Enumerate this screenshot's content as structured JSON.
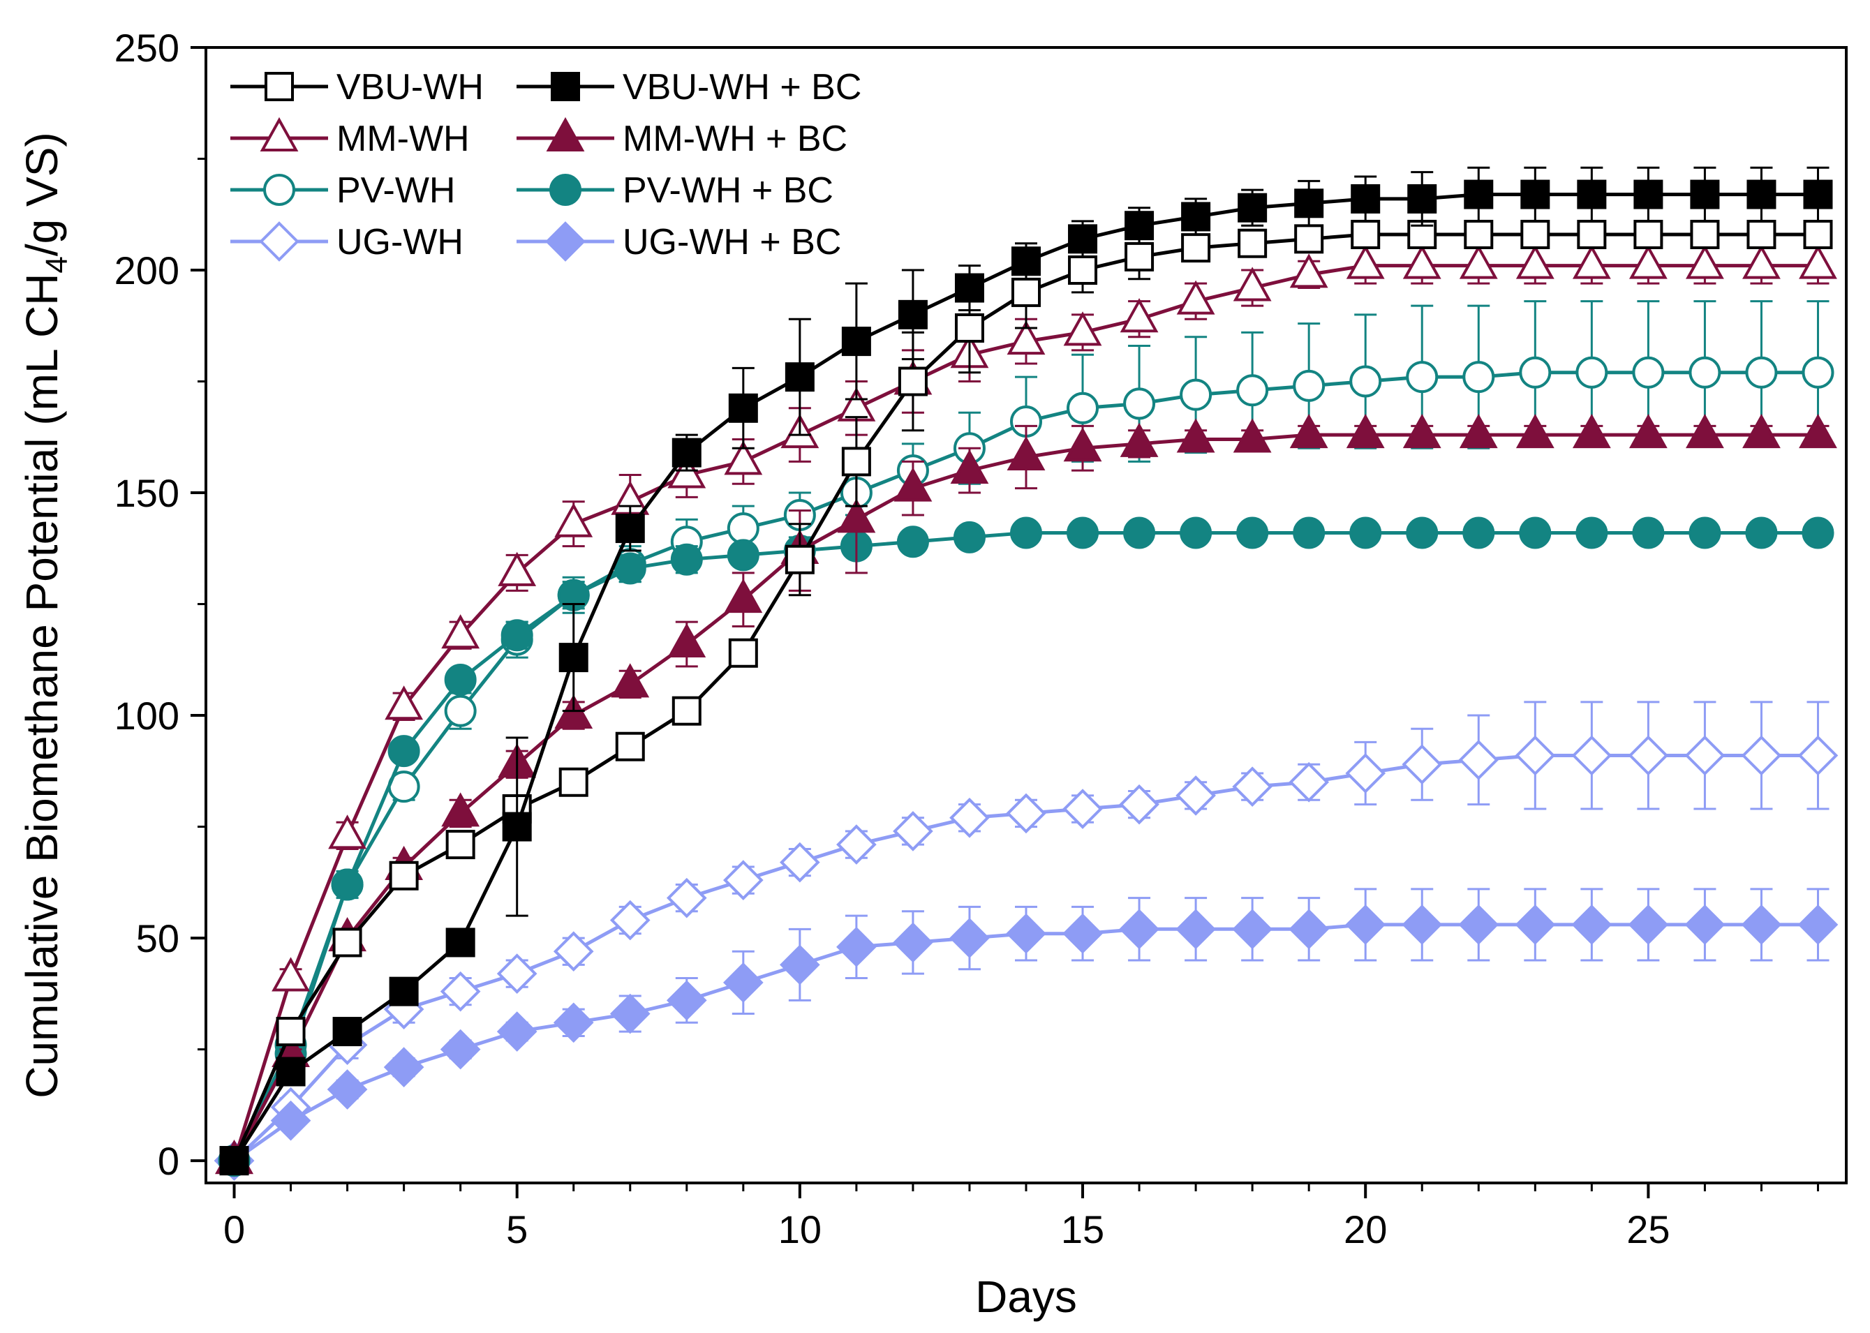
{
  "chart_data": {
    "type": "line",
    "title": "",
    "xlabel": "Days",
    "ylabel": {
      "pre": "Cumulative Biomethane Potential (mL CH",
      "sub": "4",
      "post": "/g VS)"
    },
    "xlim": [
      -0.5,
      28.5
    ],
    "ylim": [
      -5,
      250
    ],
    "xticks": [
      0,
      5,
      10,
      15,
      20,
      25
    ],
    "yticks": [
      0,
      50,
      100,
      150,
      200,
      250
    ],
    "grid": false,
    "legend_position": "top-left",
    "x": [
      0,
      1,
      2,
      3,
      4,
      5,
      6,
      7,
      8,
      9,
      10,
      11,
      12,
      13,
      14,
      15,
      16,
      17,
      18,
      19,
      20,
      21,
      22,
      23,
      24,
      25,
      26,
      27,
      28
    ],
    "series": [
      {
        "name": "UG-WH",
        "color": "#8e9cf5",
        "marker": "diamond",
        "filled": false,
        "values": [
          0,
          12,
          26,
          34,
          38,
          42,
          47,
          54,
          59,
          63,
          67,
          71,
          74,
          77,
          78,
          79,
          80,
          82,
          84,
          85,
          87,
          89,
          90,
          91,
          91,
          91,
          91,
          91,
          91
        ],
        "errors": [
          0,
          2,
          3,
          3,
          3,
          3,
          3,
          3,
          3,
          3,
          3,
          3,
          3,
          3,
          3,
          3,
          3,
          3,
          3,
          4,
          7,
          8,
          10,
          12,
          12,
          12,
          12,
          12,
          12
        ]
      },
      {
        "name": "UG-WH + BC",
        "color": "#8e9cf5",
        "marker": "diamond",
        "filled": true,
        "values": [
          0,
          9,
          16,
          21,
          25,
          29,
          31,
          33,
          36,
          40,
          44,
          48,
          49,
          50,
          51,
          51,
          52,
          52,
          52,
          52,
          53,
          53,
          53,
          53,
          53,
          53,
          53,
          53,
          53
        ],
        "errors": [
          0,
          1,
          2,
          2,
          2,
          2,
          3,
          4,
          5,
          7,
          8,
          7,
          7,
          7,
          6,
          6,
          7,
          7,
          7,
          7,
          8,
          8,
          8,
          8,
          8,
          8,
          8,
          8,
          8
        ]
      },
      {
        "name": "PV-WH",
        "color": "#138482",
        "marker": "circle",
        "filled": false,
        "values": [
          0,
          26,
          62,
          84,
          101,
          117,
          127,
          134,
          139,
          142,
          145,
          150,
          155,
          160,
          166,
          169,
          170,
          172,
          173,
          174,
          175,
          176,
          176,
          177,
          177,
          177,
          177,
          177,
          177
        ],
        "errors": [
          0,
          2,
          3,
          3,
          4,
          4,
          4,
          4,
          5,
          5,
          5,
          5,
          6,
          8,
          10,
          12,
          13,
          13,
          13,
          14,
          15,
          16,
          16,
          16,
          16,
          16,
          16,
          16,
          16
        ]
      },
      {
        "name": "PV-WH + BC",
        "color": "#138482",
        "marker": "circle",
        "filled": true,
        "values": [
          0,
          24,
          62,
          92,
          108,
          118,
          127,
          133,
          135,
          136,
          137,
          138,
          139,
          140,
          141,
          141,
          141,
          141,
          141,
          141,
          141,
          141,
          141,
          141,
          141,
          141,
          141,
          141,
          141
        ],
        "errors": [
          0,
          1,
          2,
          2,
          2,
          3,
          3,
          3,
          3,
          2,
          2,
          2,
          2,
          1,
          1,
          1,
          1,
          1,
          1,
          1,
          1,
          1,
          1,
          1,
          1,
          1,
          1,
          1,
          1
        ]
      },
      {
        "name": "MM-WH",
        "color": "#7e0f3c",
        "marker": "triangle",
        "filled": false,
        "values": [
          0,
          41,
          73,
          102,
          118,
          132,
          143,
          148,
          154,
          157,
          163,
          169,
          175,
          181,
          184,
          186,
          189,
          193,
          196,
          199,
          201,
          201,
          201,
          201,
          201,
          201,
          201,
          201,
          201
        ],
        "errors": [
          0,
          2,
          3,
          3,
          3,
          4,
          5,
          6,
          5,
          5,
          6,
          6,
          7,
          6,
          5,
          4,
          4,
          4,
          4,
          3,
          4,
          4,
          4,
          4,
          4,
          4,
          4,
          4,
          4
        ]
      },
      {
        "name": "MM-WH + BC",
        "color": "#7e0f3c",
        "marker": "triangle",
        "filled": true,
        "values": [
          0,
          24,
          50,
          66,
          78,
          89,
          100,
          107,
          116,
          126,
          137,
          144,
          151,
          155,
          158,
          160,
          161,
          162,
          162,
          163,
          163,
          163,
          163,
          163,
          163,
          163,
          163,
          163,
          163
        ],
        "errors": [
          0,
          1,
          2,
          2,
          3,
          3,
          3,
          3,
          5,
          6,
          9,
          12,
          6,
          5,
          7,
          5,
          3,
          2,
          2,
          2,
          2,
          2,
          2,
          2,
          2,
          2,
          2,
          2,
          2
        ]
      },
      {
        "name": "VBU-WH",
        "color": "#000000",
        "marker": "square",
        "filled": false,
        "values": [
          0,
          29,
          49,
          64,
          71,
          79,
          85,
          93,
          101,
          114,
          135,
          157,
          175,
          187,
          195,
          200,
          203,
          205,
          206,
          207,
          208,
          208,
          208,
          208,
          208,
          208,
          208,
          208,
          208
        ],
        "errors": [
          0,
          2,
          2,
          2,
          2,
          3,
          3,
          3,
          3,
          3,
          8,
          10,
          11,
          10,
          8,
          5,
          5,
          3,
          3,
          3,
          3,
          3,
          3,
          3,
          3,
          3,
          3,
          3,
          3
        ]
      },
      {
        "name": "VBU-WH + BC",
        "color": "#000000",
        "marker": "square",
        "filled": true,
        "values": [
          0,
          20,
          29,
          38,
          49,
          75,
          113,
          142,
          159,
          169,
          176,
          184,
          190,
          196,
          202,
          207,
          210,
          212,
          214,
          215,
          216,
          216,
          217,
          217,
          217,
          217,
          217,
          217,
          217
        ],
        "errors": [
          0,
          1,
          1,
          1,
          1,
          20,
          12,
          5,
          4,
          9,
          13,
          13,
          10,
          5,
          4,
          4,
          4,
          4,
          4,
          5,
          5,
          6,
          6,
          6,
          6,
          6,
          6,
          6,
          6
        ]
      }
    ],
    "legend": [
      [
        "VBU-WH",
        "VBU-WH + BC"
      ],
      [
        "MM-WH",
        "MM-WH + BC"
      ],
      [
        "PV-WH",
        "PV-WH + BC"
      ],
      [
        "UG-WH",
        "UG-WH + BC"
      ]
    ]
  }
}
